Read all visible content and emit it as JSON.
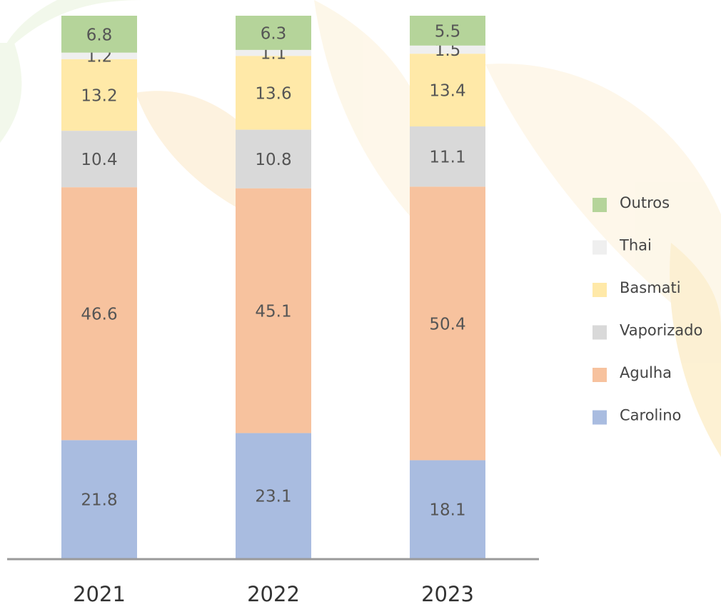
{
  "chart_data": {
    "type": "stacked_bar",
    "categories": [
      "2021",
      "2022",
      "2023"
    ],
    "ylim": [
      0,
      100
    ],
    "series": [
      {
        "name": "Carolino",
        "color": "#a9bce0",
        "values": [
          21.8,
          23.1,
          18.1
        ]
      },
      {
        "name": "Agulha",
        "color": "#f7c29e",
        "values": [
          46.6,
          45.1,
          50.4
        ]
      },
      {
        "name": "Vaporizado",
        "color": "#d9d9d9",
        "values": [
          10.4,
          10.8,
          11.1
        ]
      },
      {
        "name": "Basmati",
        "color": "#ffe9a8",
        "values": [
          13.2,
          13.6,
          13.4
        ]
      },
      {
        "name": "Thai",
        "color": "#efefef",
        "values": [
          1.2,
          1.1,
          1.5
        ]
      },
      {
        "name": "Outros",
        "color": "#b5d49a",
        "values": [
          6.8,
          6.3,
          5.5
        ]
      }
    ]
  }
}
